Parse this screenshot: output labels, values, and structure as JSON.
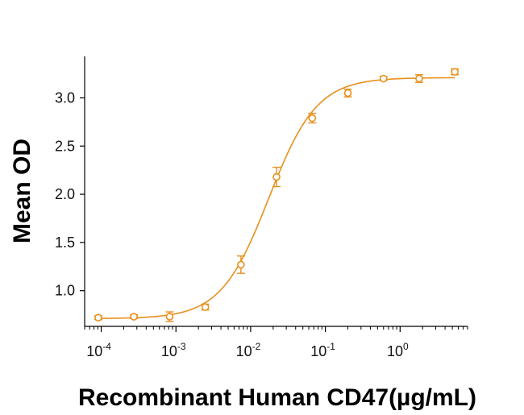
{
  "colors": {
    "series": "#E8901C",
    "axis": "#000000",
    "text": "#111111"
  },
  "chart_data": {
    "type": "scatter",
    "title": "",
    "xlabel": "Recombinant Human CD47(µg/mL)",
    "ylabel": "Mean OD",
    "x_scale": "log",
    "xlim": [
      6e-05,
      8
    ],
    "ylim": [
      0.63,
      3.43
    ],
    "grid": false,
    "x_ticks": [
      {
        "value": 0.0001,
        "base": "10",
        "exp": "-4"
      },
      {
        "value": 0.001,
        "base": "10",
        "exp": "-3"
      },
      {
        "value": 0.01,
        "base": "10",
        "exp": "-2"
      },
      {
        "value": 0.1,
        "base": "10",
        "exp": "-1"
      },
      {
        "value": 1,
        "base": "10",
        "exp": "0"
      }
    ],
    "y_ticks": [
      "1.0",
      "1.5",
      "2.0",
      "2.5",
      "3.0"
    ],
    "y_tick_values": [
      1.0,
      1.5,
      2.0,
      2.5,
      3.0
    ],
    "series": [
      {
        "points": [
          {
            "x": 9.14e-05,
            "y": 0.72,
            "err": 0.02
          },
          {
            "x": 0.000274,
            "y": 0.73,
            "err": 0.02
          },
          {
            "x": 0.000823,
            "y": 0.73,
            "err": 0.05
          },
          {
            "x": 0.00247,
            "y": 0.83,
            "err": 0.03
          },
          {
            "x": 0.00741,
            "y": 1.27,
            "err": 0.09
          },
          {
            "x": 0.0222,
            "y": 2.18,
            "err": 0.1
          },
          {
            "x": 0.0667,
            "y": 2.79,
            "err": 0.05
          },
          {
            "x": 0.2,
            "y": 3.05,
            "err": 0.04
          },
          {
            "x": 0.6,
            "y": 3.2,
            "err": 0.02
          },
          {
            "x": 1.8,
            "y": 3.2,
            "err": 0.04
          },
          {
            "x": 5.4,
            "y": 3.27,
            "err": 0.03
          }
        ],
        "fit": {
          "bottom": 0.71,
          "top": 3.21,
          "ec50": 0.0175,
          "hill": 1.35
        }
      }
    ]
  }
}
